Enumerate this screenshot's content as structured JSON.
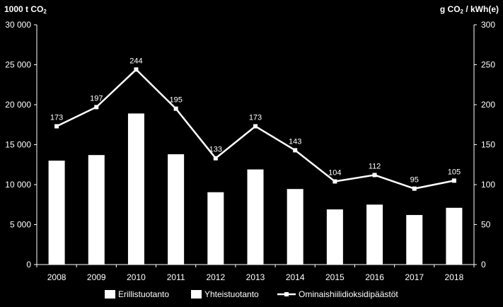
{
  "chart_data": {
    "type": "bar",
    "units": {
      "left": {
        "prefix": "1000 t CO",
        "sub": "2",
        "suffix": ""
      },
      "right": {
        "prefix": "g CO",
        "sub": "2",
        "suffix": " / kWh(e)"
      }
    },
    "categories": [
      "2008",
      "2009",
      "2010",
      "2011",
      "2012",
      "2013",
      "2014",
      "2015",
      "2016",
      "2017",
      "2018"
    ],
    "series": [
      {
        "name": "Erillistuotanto",
        "type": "bar",
        "axis": "left",
        "values": [
          0,
          0,
          0,
          0,
          0,
          0,
          0,
          0,
          0,
          0,
          0
        ]
      },
      {
        "name": "Yhteistuotanto",
        "type": "bar",
        "axis": "left",
        "values": [
          13000,
          13700,
          18900,
          13800,
          9050,
          11900,
          9450,
          6900,
          7500,
          6200,
          7100
        ]
      },
      {
        "name": "Ominaishiilidioksidipäästöt",
        "type": "line",
        "axis": "right",
        "values": [
          173,
          197,
          244,
          195,
          133,
          173,
          143,
          104,
          112,
          95,
          105
        ]
      }
    ],
    "yticks_left": [
      "0",
      "5 000",
      "10 000",
      "15 000",
      "20 000",
      "25 000",
      "30 000"
    ],
    "yticks_right": [
      "0",
      "50",
      "100",
      "150",
      "200",
      "250",
      "300"
    ],
    "ylim_left": [
      0,
      30000
    ],
    "ylim_right": [
      0,
      300
    ],
    "legend_position": "bottom",
    "colors": {
      "background": "#000000",
      "bars": "#ffffff",
      "line": "#ffffff",
      "axes": "#ffffff"
    }
  }
}
